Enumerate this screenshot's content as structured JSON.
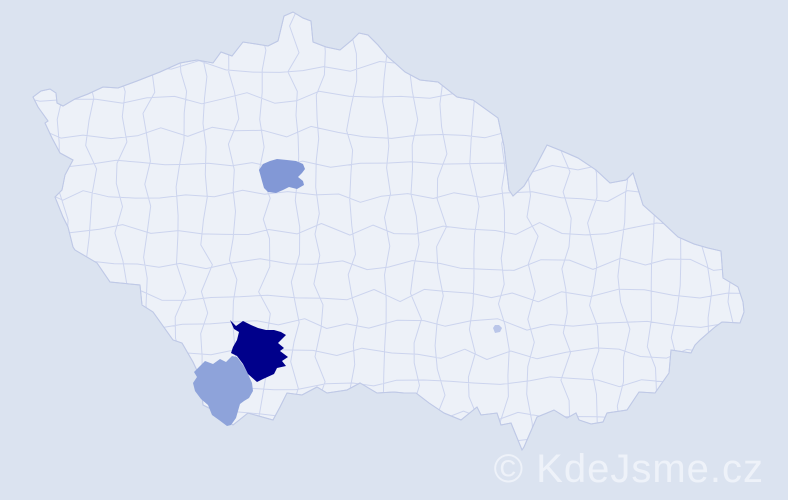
{
  "watermark": {
    "text": "© KdeJsme.cz",
    "color": "#eef2f9"
  },
  "map": {
    "type": "choropleth-districts",
    "background_color": "#dbe3f0",
    "land_color": "#edf1f8",
    "boundary_color": "#ccd4ee",
    "outline_color": "#bfc9e6",
    "regions": [
      {
        "id": "praha",
        "shade": "medium",
        "color": "#8298d6"
      },
      {
        "id": "ceske-budejovice",
        "shade": "dark",
        "color": "#00008b"
      },
      {
        "id": "cesky-krumlov",
        "shade": "medium",
        "color": "#8ea3da"
      },
      {
        "id": "vysocina-small-area",
        "shade": "light",
        "color": "#bac6e9"
      }
    ]
  }
}
